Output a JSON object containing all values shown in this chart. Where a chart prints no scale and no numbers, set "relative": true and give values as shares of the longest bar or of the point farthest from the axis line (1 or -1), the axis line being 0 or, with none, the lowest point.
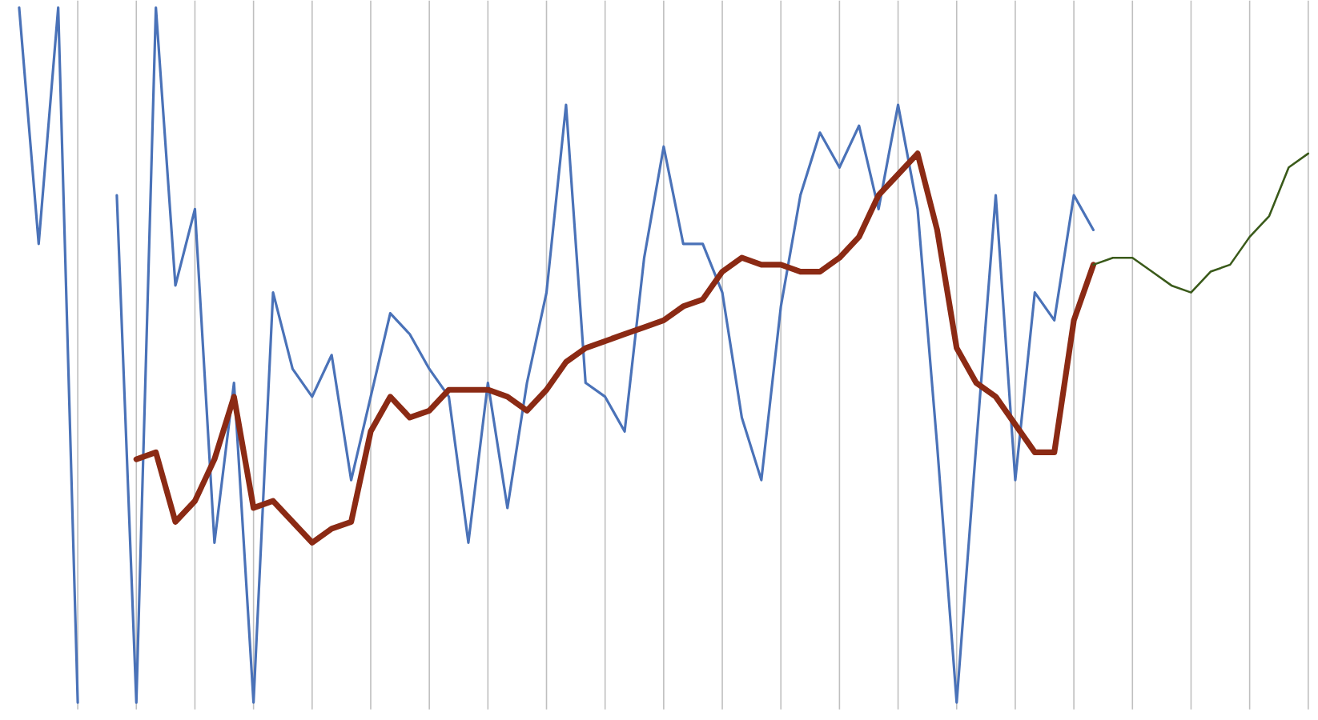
{
  "chart_data": {
    "type": "line",
    "relative": true,
    "grid": "x",
    "categories": [
      null,
      null,
      null,
      null,
      null,
      null,
      null,
      null,
      null,
      null,
      null,
      null,
      null,
      null,
      null,
      null,
      null,
      null,
      null,
      null,
      null,
      null,
      null,
      null,
      null,
      null,
      null,
      null,
      null,
      null,
      null,
      null,
      null,
      null,
      null,
      null,
      null,
      null,
      null,
      null,
      null,
      null,
      null,
      null,
      null,
      null,
      null,
      null,
      null,
      null,
      null,
      null,
      null,
      null,
      null,
      null,
      null,
      null,
      null,
      null,
      null,
      null,
      null,
      null,
      null,
      null,
      null
    ],
    "series": [
      {
        "color": "#4a72b8",
        "values": [
          1.0,
          0.66,
          1.0,
          0.0,
          null,
          0.73,
          0.0,
          1.0,
          0.6,
          0.71,
          0.23,
          0.46,
          0.0,
          0.59,
          0.48,
          0.44,
          0.5,
          0.32,
          0.44,
          0.56,
          0.53,
          0.48,
          0.44,
          0.23,
          0.46,
          0.28,
          0.46,
          0.59,
          0.86,
          0.46,
          0.44,
          0.39,
          0.64,
          0.8,
          0.66,
          0.66,
          0.59,
          0.41,
          0.32,
          0.57,
          0.73,
          0.82,
          0.77,
          0.83,
          0.71,
          0.86,
          0.71,
          0.37,
          0.0,
          0.37,
          0.73,
          0.32,
          0.59,
          0.55,
          0.73,
          0.68,
          null,
          null,
          null,
          null,
          null,
          null,
          null,
          null,
          null,
          null,
          null
        ]
      },
      {
        "color": "#8b2a14",
        "values": [
          null,
          null,
          null,
          null,
          null,
          null,
          0.35,
          0.36,
          0.26,
          0.29,
          0.35,
          0.44,
          0.28,
          0.29,
          0.26,
          0.23,
          0.25,
          0.26,
          0.39,
          0.44,
          0.41,
          0.42,
          0.45,
          0.45,
          0.45,
          0.44,
          0.42,
          0.45,
          0.49,
          0.51,
          0.52,
          0.53,
          0.54,
          0.55,
          0.57,
          0.58,
          0.62,
          0.64,
          0.63,
          0.63,
          0.62,
          0.62,
          0.64,
          0.67,
          0.73,
          0.76,
          0.79,
          0.68,
          0.51,
          0.46,
          0.44,
          0.4,
          0.36,
          0.36,
          0.55,
          0.63,
          null,
          null,
          null,
          null,
          null,
          null,
          null,
          null,
          null,
          null,
          null
        ]
      },
      {
        "color": "#3a5a1a",
        "values": [
          null,
          null,
          null,
          null,
          null,
          null,
          null,
          null,
          null,
          null,
          null,
          null,
          null,
          null,
          null,
          null,
          null,
          null,
          null,
          null,
          null,
          null,
          null,
          null,
          null,
          null,
          null,
          null,
          null,
          null,
          null,
          null,
          null,
          null,
          null,
          null,
          null,
          null,
          null,
          null,
          null,
          null,
          null,
          null,
          null,
          null,
          null,
          null,
          null,
          null,
          null,
          null,
          null,
          null,
          null,
          0.63,
          0.64,
          0.64,
          0.62,
          0.6,
          0.59,
          0.62,
          0.63,
          0.67,
          0.7,
          0.77,
          0.79
        ]
      }
    ]
  }
}
